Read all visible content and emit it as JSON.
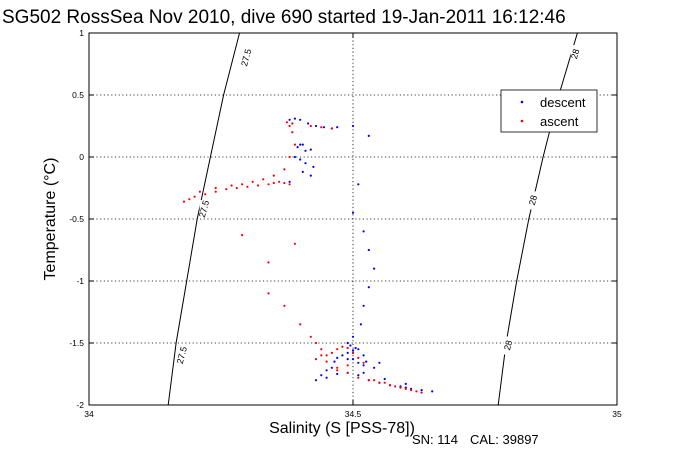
{
  "chart_data": {
    "type": "scatter",
    "title": "SG502 RossSea Nov 2010, dive 690 started 19-Jan-2011 16:12:46",
    "xlabel": "Salinity (S [PSS-78])",
    "ylabel": "Temperature (°C)",
    "xlim": [
      34,
      35
    ],
    "ylim": [
      -2,
      1
    ],
    "x_ticks": [
      "34",
      "34.5",
      "35"
    ],
    "y_ticks": [
      "1",
      "0.5",
      "0",
      "-0.5",
      "-1",
      "-1.5",
      "-2"
    ],
    "grid": true,
    "legend_position": "top-right",
    "contours": [
      {
        "level": "27.5",
        "points": [
          [
            34.15,
            -2.0
          ],
          [
            34.165,
            -1.5
          ],
          [
            34.185,
            -1.0
          ],
          [
            34.205,
            -0.5
          ],
          [
            34.23,
            0.0
          ],
          [
            34.255,
            0.5
          ],
          [
            34.285,
            1.0
          ]
        ],
        "labels": [
          {
            "x": 34.177,
            "y": -1.6
          },
          {
            "x": 34.219,
            "y": -0.42
          },
          {
            "x": 34.299,
            "y": 0.8
          }
        ]
      },
      {
        "level": "28",
        "points": [
          [
            34.775,
            -2.0
          ],
          [
            34.79,
            -1.5
          ],
          [
            34.81,
            -1.0
          ],
          [
            34.833,
            -0.5
          ],
          [
            34.86,
            0.0
          ],
          [
            34.89,
            0.5
          ],
          [
            34.925,
            1.0
          ]
        ],
        "labels": [
          {
            "x": 34.795,
            "y": -1.52
          },
          {
            "x": 34.842,
            "y": -0.35
          },
          {
            "x": 34.922,
            "y": 0.83
          }
        ]
      }
    ],
    "series": [
      {
        "name": "descent",
        "color": "#0000ff",
        "x": [
          34.38,
          34.39,
          34.4,
          34.415,
          34.43,
          34.445,
          34.46,
          34.4,
          34.395,
          34.41,
          34.42,
          34.405,
          34.39,
          34.4,
          34.41,
          34.425,
          34.405,
          34.42,
          34.38,
          34.47,
          34.5,
          34.53,
          34.51,
          34.5,
          34.52,
          34.53,
          34.54,
          34.53,
          34.52,
          34.515,
          34.5,
          34.49,
          34.495,
          34.505,
          34.5,
          34.49,
          34.48,
          34.47,
          34.465,
          34.49,
          34.5,
          34.51,
          34.52,
          34.525,
          34.52,
          34.51,
          34.5,
          34.46,
          34.45,
          34.44,
          34.43,
          34.45,
          34.47,
          34.49,
          34.51,
          34.53,
          34.55,
          34.57,
          34.59,
          34.6,
          34.61,
          34.63,
          34.65,
          34.6,
          34.56,
          34.52,
          34.54,
          34.55
        ],
        "y": [
          0.3,
          0.31,
          0.3,
          0.27,
          0.25,
          0.24,
          0.23,
          0.1,
          0.08,
          0.05,
          0.06,
          0.1,
          0.0,
          -0.02,
          -0.05,
          -0.08,
          -0.12,
          -0.15,
          -0.2,
          0.24,
          0.25,
          0.17,
          -0.22,
          -0.45,
          -0.6,
          -0.75,
          -0.9,
          -1.05,
          -1.2,
          -1.35,
          -1.45,
          -1.5,
          -1.52,
          -1.54,
          -1.56,
          -1.58,
          -1.6,
          -1.62,
          -1.65,
          -1.63,
          -1.58,
          -1.55,
          -1.6,
          -1.65,
          -1.68,
          -1.66,
          -1.63,
          -1.7,
          -1.72,
          -1.76,
          -1.8,
          -1.78,
          -1.75,
          -1.74,
          -1.76,
          -1.8,
          -1.82,
          -1.84,
          -1.85,
          -1.86,
          -1.87,
          -1.88,
          -1.89,
          -1.83,
          -1.79,
          -1.74,
          -1.7,
          -1.66
        ]
      },
      {
        "name": "ascent",
        "color": "#ff0000",
        "x": [
          34.38,
          34.37,
          34.36,
          34.35,
          34.34,
          34.32,
          34.3,
          34.28,
          34.26,
          34.24,
          34.22,
          34.2,
          34.19,
          34.18,
          34.21,
          34.24,
          34.27,
          34.29,
          34.31,
          34.33,
          34.35,
          34.37,
          34.38,
          34.39,
          34.385,
          34.38,
          34.375,
          34.385,
          34.42,
          34.44,
          34.46,
          34.39,
          34.34,
          34.29,
          34.34,
          34.37,
          34.4,
          34.42,
          34.43,
          34.44,
          34.45,
          34.46,
          34.47,
          34.48,
          34.49,
          34.5,
          34.51,
          34.52,
          34.49,
          34.47,
          34.44,
          34.43,
          34.45,
          34.47,
          34.49,
          34.51,
          34.53,
          34.55,
          34.57,
          34.59,
          34.6,
          34.61,
          34.62,
          34.63,
          34.58,
          34.56,
          34.54
        ],
        "y": [
          -0.22,
          -0.21,
          -0.2,
          -0.21,
          -0.22,
          -0.23,
          -0.24,
          -0.25,
          -0.26,
          -0.28,
          -0.3,
          -0.32,
          -0.34,
          -0.36,
          -0.28,
          -0.25,
          -0.23,
          -0.22,
          -0.2,
          -0.18,
          -0.15,
          -0.1,
          0.0,
          0.1,
          0.2,
          0.25,
          0.28,
          0.27,
          0.25,
          0.24,
          0.23,
          -0.7,
          -0.85,
          -0.63,
          -1.1,
          -1.2,
          -1.35,
          -1.45,
          -1.5,
          -1.55,
          -1.6,
          -1.58,
          -1.55,
          -1.53,
          -1.54,
          -1.58,
          -1.62,
          -1.66,
          -1.68,
          -1.72,
          -1.6,
          -1.63,
          -1.65,
          -1.7,
          -1.74,
          -1.78,
          -1.8,
          -1.82,
          -1.84,
          -1.86,
          -1.87,
          -1.88,
          -1.89,
          -1.9,
          -1.85,
          -1.82,
          -1.8
        ]
      }
    ]
  },
  "legend": {
    "items": [
      {
        "label": "descent",
        "color": "#0000ff"
      },
      {
        "label": "ascent",
        "color": "#ff0000"
      }
    ]
  },
  "footer": {
    "serial": "SN: 114",
    "calibration": "CAL: 39897"
  }
}
